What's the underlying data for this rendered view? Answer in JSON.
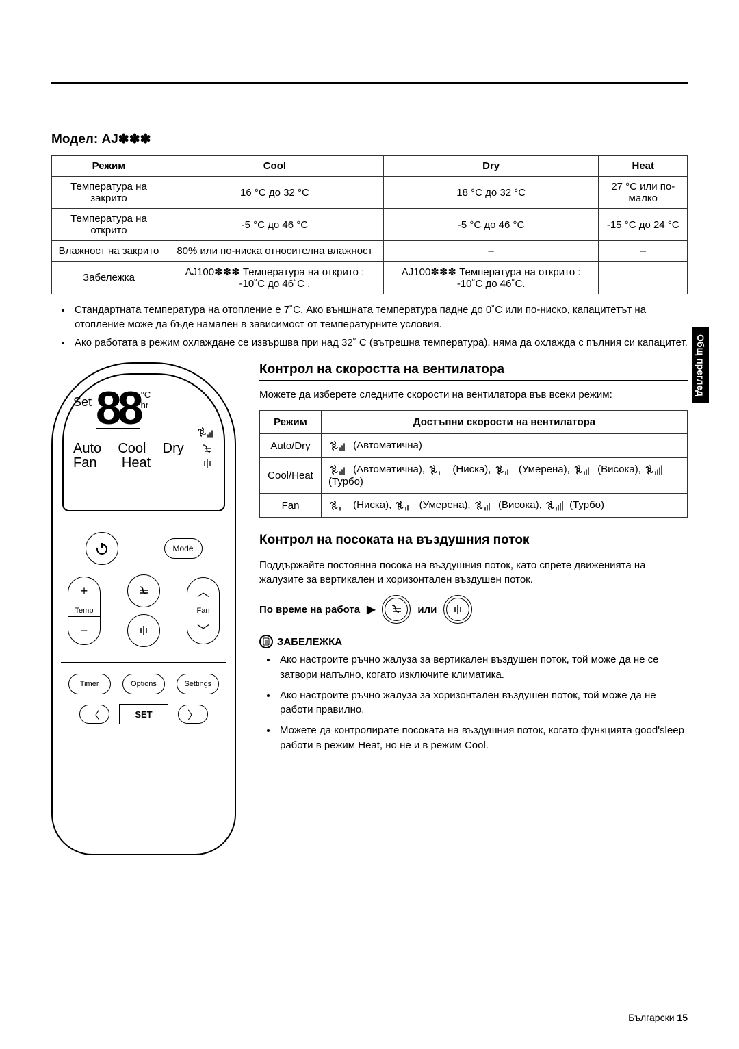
{
  "side_tab": "Общ преглед",
  "footer": {
    "lang": "Български",
    "page": "15"
  },
  "model_title": "Модел: AJ✽✽✽",
  "spec_table": {
    "headers": [
      "Режим",
      "Cool",
      "Dry",
      "Heat"
    ],
    "rows": [
      [
        "Температура на закрито",
        "16 °C до 32 °C",
        "18 °C до 32 °C",
        "27 °C или по-малко"
      ],
      [
        "Температура на открито",
        "-5 °C до 46 °C",
        "-5 °C до 46 °C",
        "-15 °C до 24 °C"
      ],
      [
        "Влажност на закрито",
        "80% или по-ниска относителна влажност",
        "–",
        "–"
      ],
      [
        "Забележка",
        "AJ100✽✽✽ Температура на открито : -10˚C до 46˚C .",
        "AJ100✽✽✽ Температура на открито : -10˚C до 46˚C.",
        ""
      ]
    ]
  },
  "spec_bullets": [
    "Стандартната температура на отопление е 7˚C. Ако външната температура падне до 0˚C или по-ниско, капацитетът на отопление може да бъде намален в зависимост от температурните условия.",
    "Ако работата в режим охлаждане се извършва при над 32˚ C (вътрешна температура), няма да охлажда с пълния си капацитет."
  ],
  "remote": {
    "lcd": {
      "set": "Set",
      "digits": "88",
      "unit_c": "°C",
      "unit_hr": "hr",
      "modes_row1": [
        "Auto",
        "Cool",
        "Dry"
      ],
      "modes_row2": [
        "Fan",
        "Heat"
      ]
    },
    "buttons": {
      "power": "⏻",
      "mode": "Mode",
      "temp": "Temp",
      "fan": "Fan",
      "timer": "Timer",
      "options": "Options",
      "settings": "Settings",
      "set": "SET",
      "plus": "+",
      "minus": "−",
      "up": "︿",
      "down": "﹀",
      "left": "〈",
      "right": "〉"
    }
  },
  "fan_section": {
    "heading": "Контрол на скоростта на вентилатора",
    "intro": "Можете да изберете следните скорости на вентилатора във всеки режим:",
    "headers": [
      "Режим",
      "Достъпни скорости на вентилатора"
    ],
    "rows": [
      {
        "mode": "Auto/Dry",
        "speeds": [
          {
            "bars": 3,
            "label": "(Автоматична)"
          }
        ]
      },
      {
        "mode": "Cool/Heat",
        "speeds": [
          {
            "bars": 3,
            "label": "(Автоматична), "
          },
          {
            "bars": 1,
            "label": "(Ниска), "
          },
          {
            "bars": 2,
            "label": "(Умерена), "
          },
          {
            "bars": 3,
            "label": "(Висока), "
          },
          {
            "bars": 4,
            "label": "(Турбо)"
          }
        ]
      },
      {
        "mode": "Fan",
        "speeds": [
          {
            "bars": 1,
            "label": "(Ниска), "
          },
          {
            "bars": 2,
            "label": "(Умерена), "
          },
          {
            "bars": 3,
            "label": "(Висока), "
          },
          {
            "bars": 4,
            "label": "(Турбо)"
          }
        ]
      }
    ]
  },
  "air_section": {
    "heading": "Контрол на посоката на въздушния поток",
    "intro": "Поддържайте постоянна посока на въздушния поток, като спрете движенията на жалузите за вертикален и хоризонтален въздушен поток.",
    "during": "По време на работа",
    "or": "или",
    "note_label": "ЗАБЕЛЕЖКА",
    "notes": [
      "Ако настроите ръчно жалуза за вертикален въздушен поток, той може да не се затвори напълно, когато изключите климатика.",
      "Ако настроите ръчно жалуза за хоризонтален въздушен поток, той може да не работи правилно.",
      "Можете да контролирате посоката на въздушния поток, когато функцията good'sleep работи в режим Heat, но не и в режим Cool."
    ]
  }
}
